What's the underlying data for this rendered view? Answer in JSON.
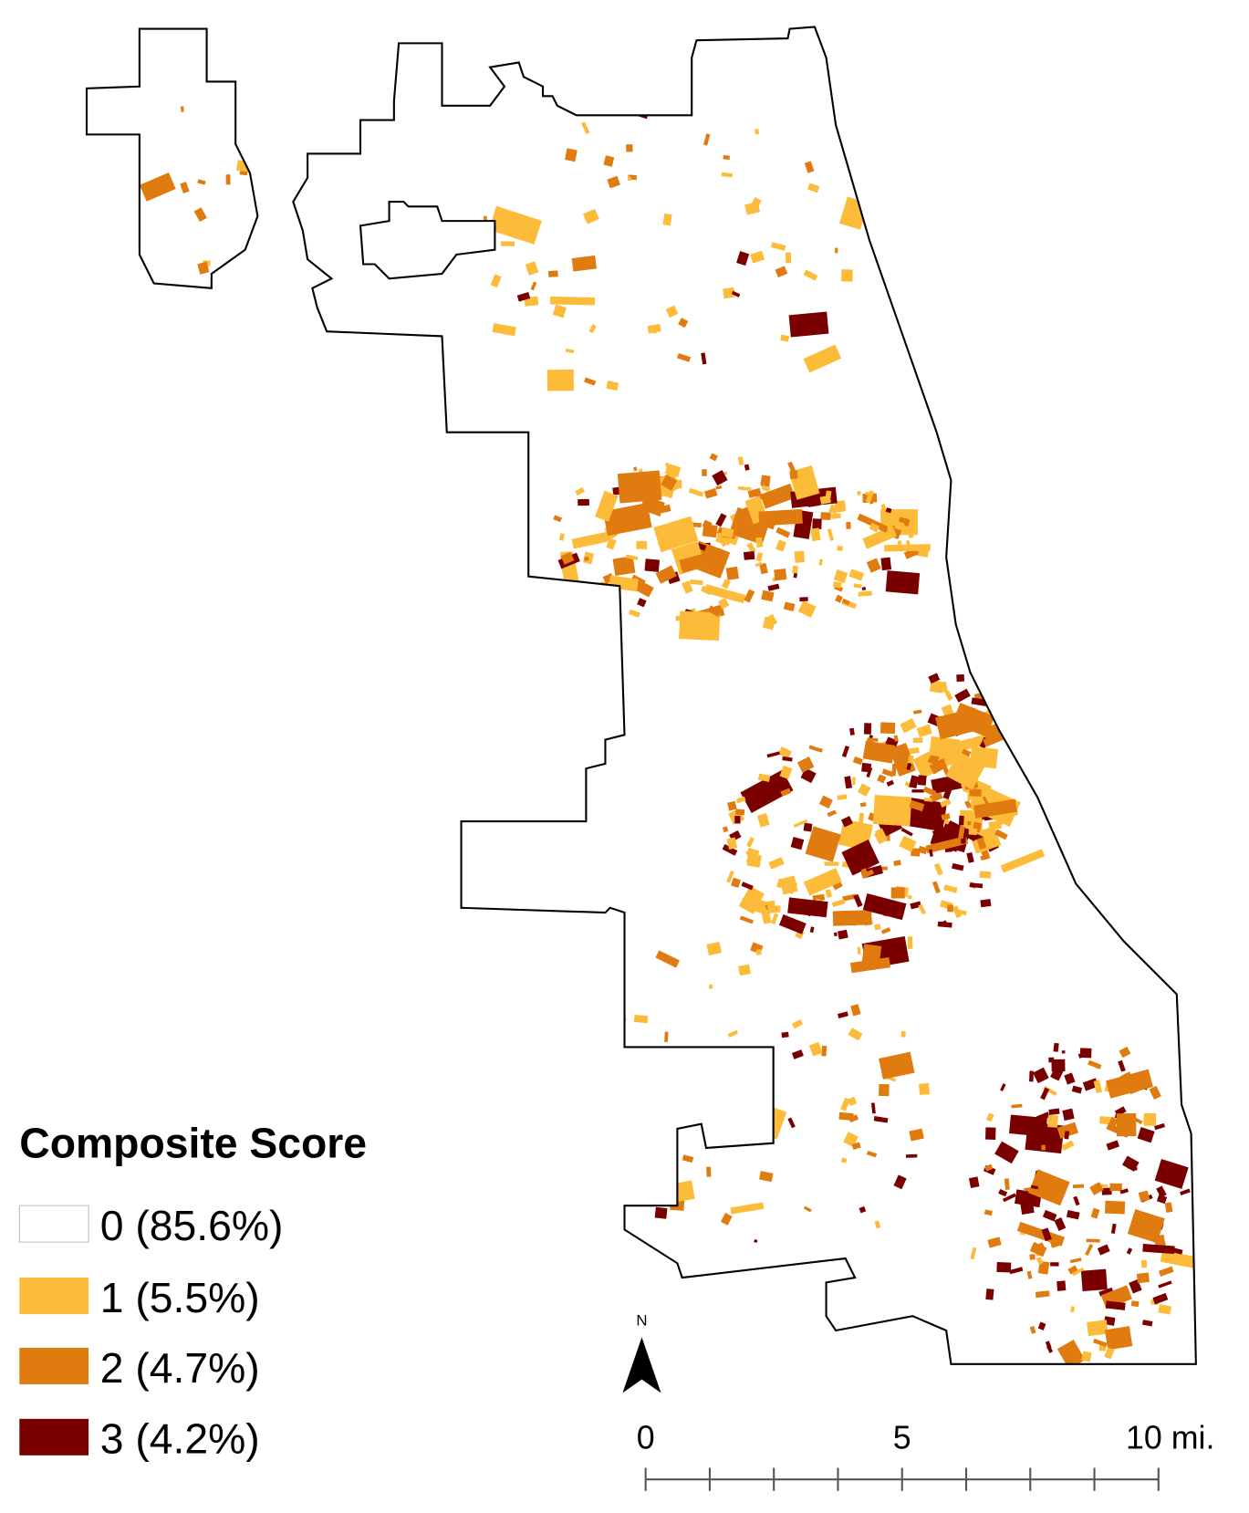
{
  "legend": {
    "title": "Composite Score",
    "items": [
      {
        "label": "0 (85.6%)",
        "color": "#ffffff"
      },
      {
        "label": "1 (5.5%)",
        "color": "#fdbb3a"
      },
      {
        "label": "2 (4.7%)",
        "color": "#e07b10"
      },
      {
        "label": "3 (4.2%)",
        "color": "#7a0000"
      }
    ]
  },
  "scale_bar": {
    "labels": [
      "0",
      "5",
      "10 mi."
    ]
  },
  "north_arrow": {
    "label": "N"
  }
}
